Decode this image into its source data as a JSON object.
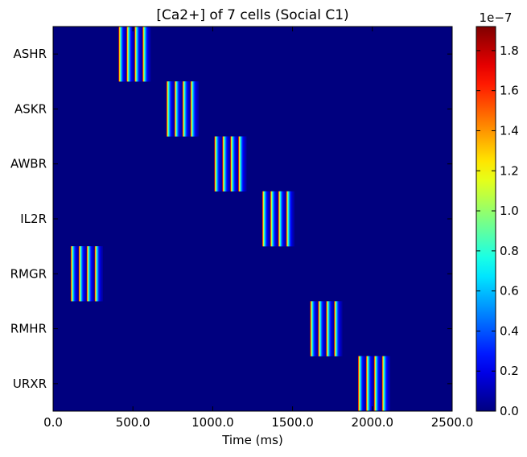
{
  "chart_data": {
    "type": "heatmap",
    "title": "[Ca2+] of 7 cells (Social C1)",
    "xlabel": "Time (ms)",
    "ylabel": "",
    "xlim": [
      0,
      2500
    ],
    "x_ticks": [
      0,
      500,
      1000,
      1500,
      2000,
      2500
    ],
    "x_tick_labels": [
      "0.0",
      "500.0",
      "1000.0",
      "1500.0",
      "2000.0",
      "2500.0"
    ],
    "rows": [
      "ASHR",
      "ASKR",
      "AWBR",
      "IL2R",
      "RMGR",
      "RMHR",
      "URXR"
    ],
    "colormap": "jet",
    "colorbar": {
      "min": 0,
      "max": 1.92e-07,
      "exponent_label": "1e−7",
      "ticks": [
        0,
        0.2,
        0.4,
        0.6,
        0.8,
        1.0,
        1.2,
        1.4,
        1.6,
        1.8
      ],
      "tick_labels": [
        "0.0",
        "0.2",
        "0.4",
        "0.6",
        "0.8",
        "1.0",
        "1.2",
        "1.4",
        "1.6",
        "1.8"
      ]
    },
    "series": [
      {
        "row": "ASHR",
        "active_start_ms": 410,
        "active_end_ms": 610,
        "pulses": 4,
        "peak_value": 1.92e-07
      },
      {
        "row": "ASKR",
        "active_start_ms": 710,
        "active_end_ms": 910,
        "pulses": 4,
        "peak_value": 1.92e-07
      },
      {
        "row": "AWBR",
        "active_start_ms": 1010,
        "active_end_ms": 1210,
        "pulses": 4,
        "peak_value": 1.92e-07
      },
      {
        "row": "IL2R",
        "active_start_ms": 1310,
        "active_end_ms": 1510,
        "pulses": 4,
        "peak_value": 1.92e-07
      },
      {
        "row": "RMGR",
        "active_start_ms": 110,
        "active_end_ms": 310,
        "pulses": 4,
        "peak_value": 1.92e-07
      },
      {
        "row": "RMHR",
        "active_start_ms": 1610,
        "active_end_ms": 1810,
        "pulses": 4,
        "peak_value": 1.92e-07
      },
      {
        "row": "URXR",
        "active_start_ms": 1910,
        "active_end_ms": 2110,
        "pulses": 4,
        "peak_value": 1.92e-07
      }
    ]
  }
}
